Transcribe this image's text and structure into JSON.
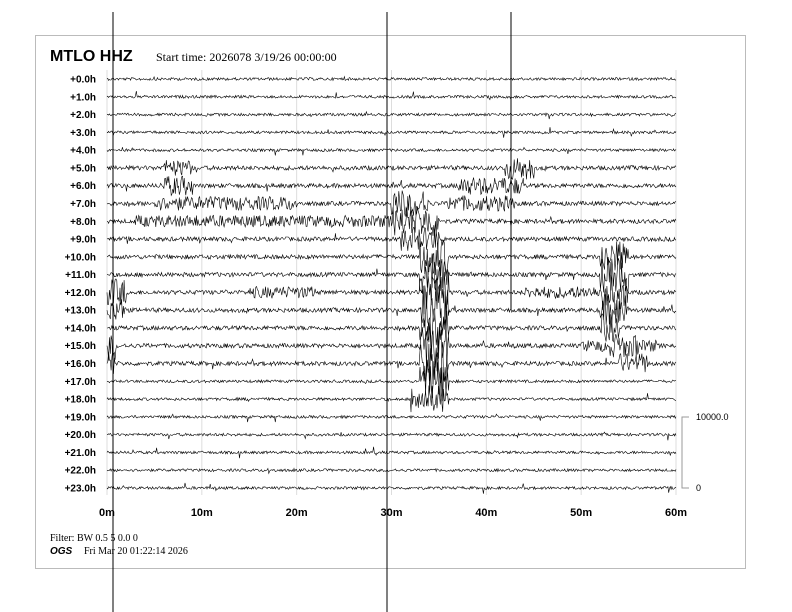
{
  "header": {
    "station": "MTLO HHZ",
    "start_time": "Start time: 2026078  3/19/26 00:00:00"
  },
  "footer": {
    "filter": "Filter: BW 0.5 5 0.0 0",
    "agency": "OGS",
    "generated": "Fri Mar 20 01:22:14 2026"
  },
  "chart_data": {
    "type": "line",
    "title": "MTLO HHZ",
    "xlabel": "",
    "ylabel": "",
    "x_ticks": [
      "0m",
      "10m",
      "20m",
      "30m",
      "40m",
      "50m",
      "60m"
    ],
    "xlim": [
      0,
      60
    ],
    "row_labels": [
      "+0.0h",
      "+1.0h",
      "+2.0h",
      "+3.0h",
      "+4.0h",
      "+5.0h",
      "+6.0h",
      "+7.0h",
      "+8.0h",
      "+9.0h",
      "+10.0h",
      "+11.0h",
      "+12.0h",
      "+13.0h",
      "+14.0h",
      "+15.0h",
      "+16.0h",
      "+17.0h",
      "+18.0h",
      "+19.0h",
      "+20.0h",
      "+21.0h",
      "+22.0h",
      "+23.0h"
    ],
    "amplitude_scale": {
      "top": "10000.0",
      "bottom": "0"
    },
    "trace_color": "#000000",
    "grid": true
  }
}
